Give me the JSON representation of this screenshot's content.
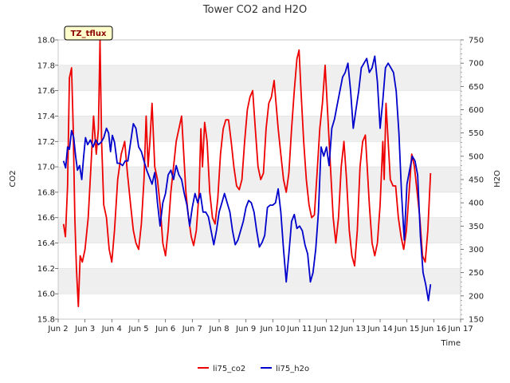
{
  "chart_data": {
    "type": "line",
    "title": "Tower CO2 and H2O",
    "badge": "TZ_tflux",
    "xlabel": "Time",
    "ylabel_left": "CO2",
    "ylabel_right": "H2O",
    "x_ticks": [
      "Jun 2",
      "Jun 3",
      "Jun 4",
      "Jun 5",
      "Jun 6",
      "Jun 7",
      "Jun 8",
      "Jun 9",
      "Jun 10",
      "Jun 11",
      "Jun 12",
      "Jun 13",
      "Jun 14",
      "Jun 15",
      "Jun 16",
      "Jun 17"
    ],
    "x_range_days": [
      2,
      17
    ],
    "y_left_range": [
      15.8,
      18.0
    ],
    "y_left_ticks": [
      "15.8",
      "16.0",
      "16.2",
      "16.4",
      "16.6",
      "16.8",
      "17.0",
      "17.2",
      "17.4",
      "17.6",
      "17.8",
      "18.0"
    ],
    "y_right_range": [
      150,
      750
    ],
    "y_right_ticks": [
      "150",
      "200",
      "250",
      "300",
      "350",
      "400",
      "450",
      "500",
      "550",
      "600",
      "650",
      "700",
      "750"
    ],
    "grid": "horizontal bands",
    "legend_position": "bottom-center",
    "colors": {
      "li75_co2": "#ee0000",
      "li75_h2o": "#0000cc",
      "band": "#efefef",
      "badge_bg": "#ffffcc"
    },
    "series": [
      {
        "name": "li75_co2",
        "axis": "left",
        "points": [
          [
            2.2,
            16.55
          ],
          [
            2.27,
            16.45
          ],
          [
            2.35,
            16.85
          ],
          [
            2.42,
            17.7
          ],
          [
            2.5,
            17.78
          ],
          [
            2.56,
            17.3
          ],
          [
            2.62,
            16.6
          ],
          [
            2.68,
            16.2
          ],
          [
            2.75,
            15.9
          ],
          [
            2.82,
            16.3
          ],
          [
            2.9,
            16.25
          ],
          [
            3.0,
            16.35
          ],
          [
            3.12,
            16.6
          ],
          [
            3.22,
            17.0
          ],
          [
            3.32,
            17.4
          ],
          [
            3.42,
            17.1
          ],
          [
            3.5,
            17.3
          ],
          [
            3.56,
            18.0
          ],
          [
            3.62,
            17.2
          ],
          [
            3.7,
            16.7
          ],
          [
            3.8,
            16.6
          ],
          [
            3.9,
            16.35
          ],
          [
            4.0,
            16.25
          ],
          [
            4.1,
            16.5
          ],
          [
            4.22,
            16.9
          ],
          [
            4.35,
            17.1
          ],
          [
            4.48,
            17.2
          ],
          [
            4.58,
            16.95
          ],
          [
            4.7,
            16.7
          ],
          [
            4.8,
            16.5
          ],
          [
            4.9,
            16.4
          ],
          [
            5.0,
            16.35
          ],
          [
            5.1,
            16.55
          ],
          [
            5.2,
            16.9
          ],
          [
            5.28,
            17.4
          ],
          [
            5.35,
            17.0
          ],
          [
            5.42,
            17.2
          ],
          [
            5.5,
            17.5
          ],
          [
            5.6,
            17.0
          ],
          [
            5.7,
            16.9
          ],
          [
            5.8,
            16.7
          ],
          [
            5.9,
            16.4
          ],
          [
            6.0,
            16.3
          ],
          [
            6.1,
            16.5
          ],
          [
            6.2,
            16.8
          ],
          [
            6.3,
            17.0
          ],
          [
            6.4,
            17.2
          ],
          [
            6.5,
            17.3
          ],
          [
            6.6,
            17.4
          ],
          [
            6.68,
            17.1
          ],
          [
            6.76,
            16.8
          ],
          [
            6.86,
            16.6
          ],
          [
            6.96,
            16.45
          ],
          [
            7.05,
            16.38
          ],
          [
            7.15,
            16.5
          ],
          [
            7.25,
            16.8
          ],
          [
            7.32,
            17.3
          ],
          [
            7.38,
            17.0
          ],
          [
            7.46,
            17.35
          ],
          [
            7.55,
            17.2
          ],
          [
            7.65,
            16.8
          ],
          [
            7.75,
            16.6
          ],
          [
            7.85,
            16.55
          ],
          [
            7.95,
            16.75
          ],
          [
            8.05,
            17.1
          ],
          [
            8.15,
            17.3
          ],
          [
            8.25,
            17.37
          ],
          [
            8.35,
            17.37
          ],
          [
            8.45,
            17.2
          ],
          [
            8.55,
            17.0
          ],
          [
            8.65,
            16.85
          ],
          [
            8.75,
            16.82
          ],
          [
            8.85,
            16.9
          ],
          [
            8.95,
            17.2
          ],
          [
            9.05,
            17.45
          ],
          [
            9.15,
            17.55
          ],
          [
            9.25,
            17.6
          ],
          [
            9.35,
            17.3
          ],
          [
            9.45,
            17.0
          ],
          [
            9.55,
            16.9
          ],
          [
            9.65,
            16.95
          ],
          [
            9.75,
            17.3
          ],
          [
            9.85,
            17.5
          ],
          [
            9.95,
            17.55
          ],
          [
            10.05,
            17.68
          ],
          [
            10.12,
            17.5
          ],
          [
            10.2,
            17.3
          ],
          [
            10.3,
            17.1
          ],
          [
            10.4,
            16.9
          ],
          [
            10.5,
            16.8
          ],
          [
            10.6,
            16.95
          ],
          [
            10.7,
            17.3
          ],
          [
            10.8,
            17.6
          ],
          [
            10.9,
            17.85
          ],
          [
            10.98,
            17.92
          ],
          [
            11.05,
            17.6
          ],
          [
            11.15,
            17.2
          ],
          [
            11.25,
            16.9
          ],
          [
            11.35,
            16.7
          ],
          [
            11.45,
            16.6
          ],
          [
            11.55,
            16.62
          ],
          [
            11.65,
            16.95
          ],
          [
            11.75,
            17.3
          ],
          [
            11.85,
            17.5
          ],
          [
            11.95,
            17.8
          ],
          [
            12.05,
            17.4
          ],
          [
            12.15,
            17.0
          ],
          [
            12.25,
            16.6
          ],
          [
            12.35,
            16.4
          ],
          [
            12.45,
            16.6
          ],
          [
            12.55,
            17.0
          ],
          [
            12.65,
            17.2
          ],
          [
            12.75,
            16.9
          ],
          [
            12.85,
            16.5
          ],
          [
            12.95,
            16.3
          ],
          [
            13.05,
            16.22
          ],
          [
            13.15,
            16.5
          ],
          [
            13.25,
            17.0
          ],
          [
            13.35,
            17.2
          ],
          [
            13.45,
            17.25
          ],
          [
            13.52,
            17.0
          ],
          [
            13.6,
            16.7
          ],
          [
            13.7,
            16.4
          ],
          [
            13.8,
            16.3
          ],
          [
            13.9,
            16.4
          ],
          [
            14.0,
            16.7
          ],
          [
            14.1,
            17.2
          ],
          [
            14.15,
            16.9
          ],
          [
            14.22,
            17.5
          ],
          [
            14.3,
            17.2
          ],
          [
            14.38,
            16.9
          ],
          [
            14.48,
            16.85
          ],
          [
            14.58,
            16.85
          ],
          [
            14.68,
            16.6
          ],
          [
            14.78,
            16.45
          ],
          [
            14.88,
            16.35
          ],
          [
            14.98,
            16.5
          ],
          [
            15.08,
            16.8
          ],
          [
            15.18,
            17.1
          ],
          [
            15.28,
            17.0
          ],
          [
            15.38,
            16.8
          ],
          [
            15.48,
            16.6
          ],
          [
            15.58,
            16.3
          ],
          [
            15.68,
            16.25
          ],
          [
            15.78,
            16.5
          ],
          [
            15.88,
            16.95
          ]
        ]
      },
      {
        "name": "li75_h2o",
        "axis": "right",
        "points": [
          [
            2.2,
            490
          ],
          [
            2.28,
            475
          ],
          [
            2.35,
            520
          ],
          [
            2.42,
            515
          ],
          [
            2.5,
            555
          ],
          [
            2.58,
            540
          ],
          [
            2.65,
            500
          ],
          [
            2.72,
            470
          ],
          [
            2.8,
            480
          ],
          [
            2.88,
            450
          ],
          [
            2.95,
            500
          ],
          [
            3.02,
            540
          ],
          [
            3.1,
            525
          ],
          [
            3.2,
            535
          ],
          [
            3.3,
            520
          ],
          [
            3.4,
            535
          ],
          [
            3.5,
            525
          ],
          [
            3.6,
            530
          ],
          [
            3.7,
            540
          ],
          [
            3.8,
            560
          ],
          [
            3.88,
            550
          ],
          [
            3.95,
            510
          ],
          [
            4.02,
            545
          ],
          [
            4.1,
            530
          ],
          [
            4.2,
            485
          ],
          [
            4.3,
            485
          ],
          [
            4.4,
            480
          ],
          [
            4.5,
            490
          ],
          [
            4.6,
            490
          ],
          [
            4.7,
            530
          ],
          [
            4.8,
            570
          ],
          [
            4.9,
            560
          ],
          [
            5.0,
            520
          ],
          [
            5.1,
            510
          ],
          [
            5.2,
            490
          ],
          [
            5.3,
            470
          ],
          [
            5.4,
            455
          ],
          [
            5.5,
            440
          ],
          [
            5.6,
            465
          ],
          [
            5.7,
            400
          ],
          [
            5.8,
            350
          ],
          [
            5.9,
            400
          ],
          [
            6.0,
            420
          ],
          [
            6.1,
            460
          ],
          [
            6.2,
            470
          ],
          [
            6.3,
            450
          ],
          [
            6.4,
            480
          ],
          [
            6.5,
            460
          ],
          [
            6.6,
            450
          ],
          [
            6.7,
            420
          ],
          [
            6.8,
            395
          ],
          [
            6.9,
            350
          ],
          [
            7.0,
            390
          ],
          [
            7.1,
            420
          ],
          [
            7.2,
            400
          ],
          [
            7.3,
            420
          ],
          [
            7.4,
            380
          ],
          [
            7.5,
            380
          ],
          [
            7.6,
            370
          ],
          [
            7.7,
            340
          ],
          [
            7.8,
            310
          ],
          [
            7.9,
            340
          ],
          [
            8.0,
            380
          ],
          [
            8.1,
            400
          ],
          [
            8.2,
            420
          ],
          [
            8.3,
            400
          ],
          [
            8.4,
            380
          ],
          [
            8.5,
            340
          ],
          [
            8.6,
            310
          ],
          [
            8.7,
            320
          ],
          [
            8.8,
            340
          ],
          [
            8.9,
            360
          ],
          [
            9.0,
            390
          ],
          [
            9.1,
            405
          ],
          [
            9.2,
            400
          ],
          [
            9.3,
            380
          ],
          [
            9.4,
            340
          ],
          [
            9.5,
            305
          ],
          [
            9.6,
            315
          ],
          [
            9.7,
            330
          ],
          [
            9.8,
            390
          ],
          [
            9.9,
            395
          ],
          [
            10.0,
            395
          ],
          [
            10.1,
            400
          ],
          [
            10.2,
            430
          ],
          [
            10.3,
            380
          ],
          [
            10.4,
            300
          ],
          [
            10.5,
            230
          ],
          [
            10.6,
            290
          ],
          [
            10.7,
            360
          ],
          [
            10.8,
            375
          ],
          [
            10.9,
            345
          ],
          [
            11.0,
            350
          ],
          [
            11.1,
            340
          ],
          [
            11.2,
            310
          ],
          [
            11.3,
            290
          ],
          [
            11.4,
            230
          ],
          [
            11.5,
            250
          ],
          [
            11.6,
            300
          ],
          [
            11.7,
            380
          ],
          [
            11.8,
            520
          ],
          [
            11.9,
            500
          ],
          [
            12.0,
            520
          ],
          [
            12.1,
            480
          ],
          [
            12.2,
            560
          ],
          [
            12.3,
            580
          ],
          [
            12.4,
            610
          ],
          [
            12.5,
            640
          ],
          [
            12.6,
            670
          ],
          [
            12.7,
            680
          ],
          [
            12.8,
            700
          ],
          [
            12.9,
            640
          ],
          [
            13.0,
            560
          ],
          [
            13.1,
            600
          ],
          [
            13.2,
            640
          ],
          [
            13.3,
            690
          ],
          [
            13.4,
            700
          ],
          [
            13.5,
            710
          ],
          [
            13.6,
            680
          ],
          [
            13.7,
            690
          ],
          [
            13.8,
            715
          ],
          [
            13.9,
            660
          ],
          [
            14.0,
            560
          ],
          [
            14.1,
            620
          ],
          [
            14.2,
            690
          ],
          [
            14.3,
            700
          ],
          [
            14.4,
            690
          ],
          [
            14.5,
            680
          ],
          [
            14.6,
            640
          ],
          [
            14.7,
            550
          ],
          [
            14.8,
            420
          ],
          [
            14.9,
            320
          ],
          [
            15.0,
            440
          ],
          [
            15.1,
            470
          ],
          [
            15.2,
            500
          ],
          [
            15.3,
            490
          ],
          [
            15.4,
            460
          ],
          [
            15.5,
            330
          ],
          [
            15.6,
            250
          ],
          [
            15.7,
            225
          ],
          [
            15.8,
            190
          ],
          [
            15.88,
            225
          ]
        ]
      }
    ]
  },
  "legend": [
    {
      "label": "li75_co2",
      "color": "#ee0000"
    },
    {
      "label": "li75_h2o",
      "color": "#0000cc"
    }
  ]
}
